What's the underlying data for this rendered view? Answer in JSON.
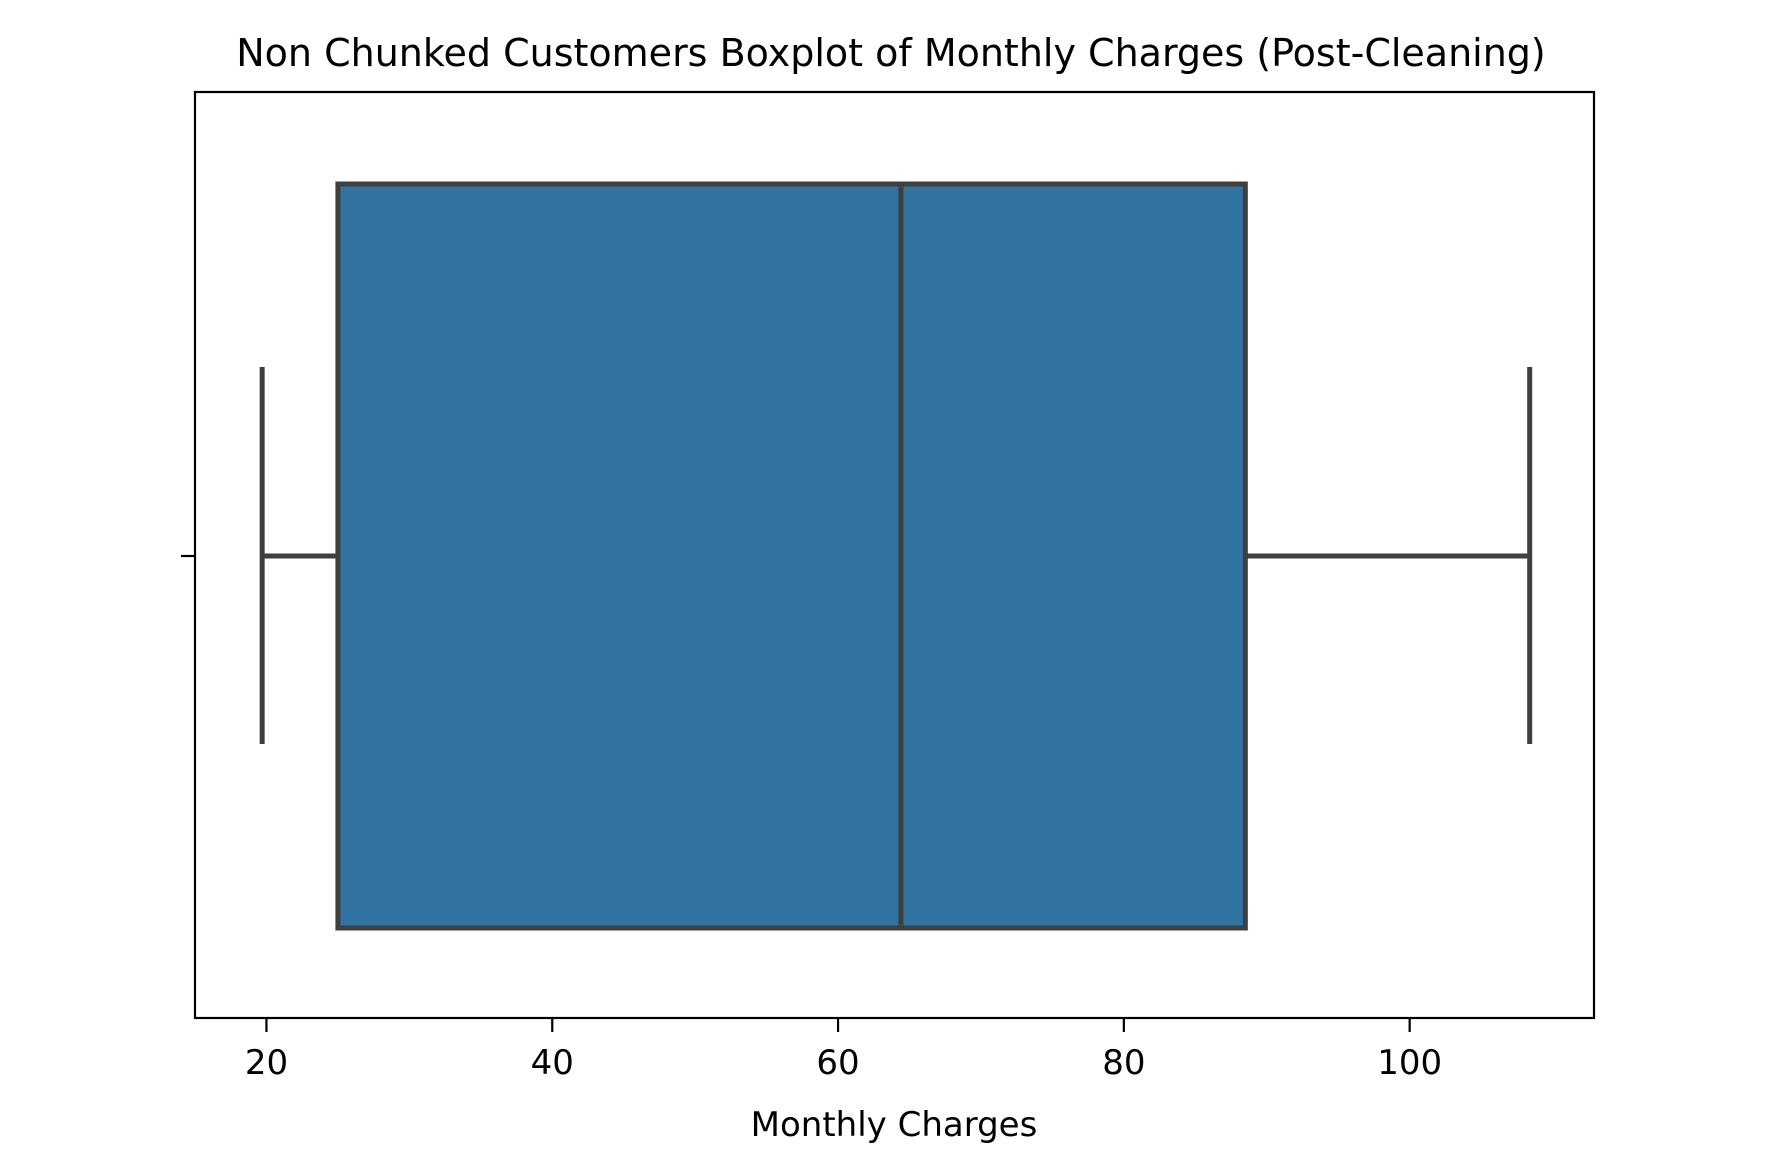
{
  "chart_data": {
    "type": "box",
    "title": "Non Chunked Customers Boxplot of Monthly Charges (Post-Cleaning)",
    "xlabel": "Monthly Charges",
    "ylabel": "",
    "orientation": "horizontal",
    "xlim": [
      15.0,
      112.9
    ],
    "xticks": [
      20,
      40,
      60,
      80,
      100
    ],
    "xtick_labels": [
      "20",
      "40",
      "60",
      "80",
      "100"
    ],
    "grid": false,
    "box": {
      "whisker_low": 19.7,
      "q1": 25.0,
      "median": 64.4,
      "q3": 88.5,
      "whisker_high": 108.4
    },
    "colors": {
      "box_fill": "#3274a1",
      "line": "#3f3f3f",
      "axes": "#000000"
    }
  }
}
